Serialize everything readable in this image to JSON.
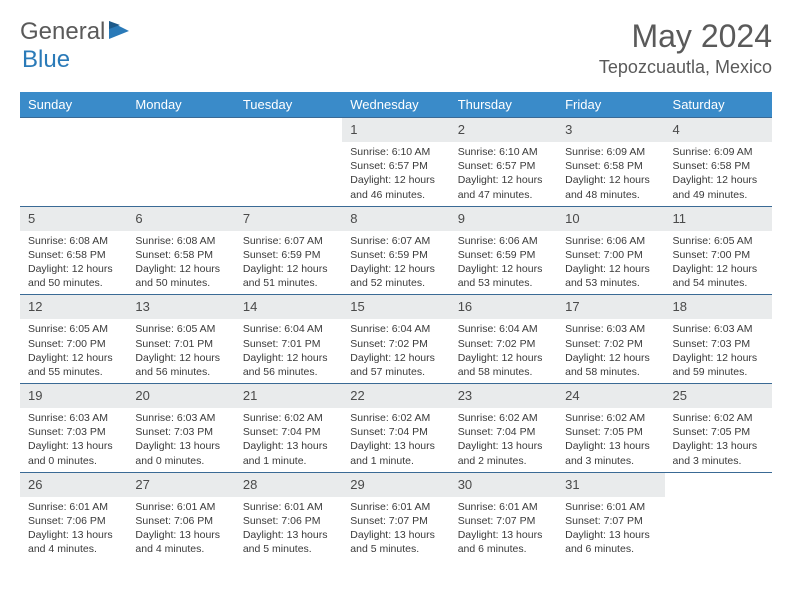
{
  "logo": {
    "text1": "General",
    "text2": "Blue"
  },
  "header": {
    "month": "May 2024",
    "location": "Tepozcuautla, Mexico"
  },
  "colors": {
    "header_bg": "#3a8bc9",
    "header_text": "#ffffff",
    "daynum_bg": "#e9ebec",
    "border": "#3a6a95",
    "logo_gray": "#5a5a5a",
    "logo_blue": "#2a7ab8"
  },
  "day_headers": [
    "Sunday",
    "Monday",
    "Tuesday",
    "Wednesday",
    "Thursday",
    "Friday",
    "Saturday"
  ],
  "weeks": [
    [
      null,
      null,
      null,
      {
        "n": "1",
        "sr": "Sunrise: 6:10 AM",
        "ss": "Sunset: 6:57 PM",
        "d1": "Daylight: 12 hours",
        "d2": "and 46 minutes."
      },
      {
        "n": "2",
        "sr": "Sunrise: 6:10 AM",
        "ss": "Sunset: 6:57 PM",
        "d1": "Daylight: 12 hours",
        "d2": "and 47 minutes."
      },
      {
        "n": "3",
        "sr": "Sunrise: 6:09 AM",
        "ss": "Sunset: 6:58 PM",
        "d1": "Daylight: 12 hours",
        "d2": "and 48 minutes."
      },
      {
        "n": "4",
        "sr": "Sunrise: 6:09 AM",
        "ss": "Sunset: 6:58 PM",
        "d1": "Daylight: 12 hours",
        "d2": "and 49 minutes."
      }
    ],
    [
      {
        "n": "5",
        "sr": "Sunrise: 6:08 AM",
        "ss": "Sunset: 6:58 PM",
        "d1": "Daylight: 12 hours",
        "d2": "and 50 minutes."
      },
      {
        "n": "6",
        "sr": "Sunrise: 6:08 AM",
        "ss": "Sunset: 6:58 PM",
        "d1": "Daylight: 12 hours",
        "d2": "and 50 minutes."
      },
      {
        "n": "7",
        "sr": "Sunrise: 6:07 AM",
        "ss": "Sunset: 6:59 PM",
        "d1": "Daylight: 12 hours",
        "d2": "and 51 minutes."
      },
      {
        "n": "8",
        "sr": "Sunrise: 6:07 AM",
        "ss": "Sunset: 6:59 PM",
        "d1": "Daylight: 12 hours",
        "d2": "and 52 minutes."
      },
      {
        "n": "9",
        "sr": "Sunrise: 6:06 AM",
        "ss": "Sunset: 6:59 PM",
        "d1": "Daylight: 12 hours",
        "d2": "and 53 minutes."
      },
      {
        "n": "10",
        "sr": "Sunrise: 6:06 AM",
        "ss": "Sunset: 7:00 PM",
        "d1": "Daylight: 12 hours",
        "d2": "and 53 minutes."
      },
      {
        "n": "11",
        "sr": "Sunrise: 6:05 AM",
        "ss": "Sunset: 7:00 PM",
        "d1": "Daylight: 12 hours",
        "d2": "and 54 minutes."
      }
    ],
    [
      {
        "n": "12",
        "sr": "Sunrise: 6:05 AM",
        "ss": "Sunset: 7:00 PM",
        "d1": "Daylight: 12 hours",
        "d2": "and 55 minutes."
      },
      {
        "n": "13",
        "sr": "Sunrise: 6:05 AM",
        "ss": "Sunset: 7:01 PM",
        "d1": "Daylight: 12 hours",
        "d2": "and 56 minutes."
      },
      {
        "n": "14",
        "sr": "Sunrise: 6:04 AM",
        "ss": "Sunset: 7:01 PM",
        "d1": "Daylight: 12 hours",
        "d2": "and 56 minutes."
      },
      {
        "n": "15",
        "sr": "Sunrise: 6:04 AM",
        "ss": "Sunset: 7:02 PM",
        "d1": "Daylight: 12 hours",
        "d2": "and 57 minutes."
      },
      {
        "n": "16",
        "sr": "Sunrise: 6:04 AM",
        "ss": "Sunset: 7:02 PM",
        "d1": "Daylight: 12 hours",
        "d2": "and 58 minutes."
      },
      {
        "n": "17",
        "sr": "Sunrise: 6:03 AM",
        "ss": "Sunset: 7:02 PM",
        "d1": "Daylight: 12 hours",
        "d2": "and 58 minutes."
      },
      {
        "n": "18",
        "sr": "Sunrise: 6:03 AM",
        "ss": "Sunset: 7:03 PM",
        "d1": "Daylight: 12 hours",
        "d2": "and 59 minutes."
      }
    ],
    [
      {
        "n": "19",
        "sr": "Sunrise: 6:03 AM",
        "ss": "Sunset: 7:03 PM",
        "d1": "Daylight: 13 hours",
        "d2": "and 0 minutes."
      },
      {
        "n": "20",
        "sr": "Sunrise: 6:03 AM",
        "ss": "Sunset: 7:03 PM",
        "d1": "Daylight: 13 hours",
        "d2": "and 0 minutes."
      },
      {
        "n": "21",
        "sr": "Sunrise: 6:02 AM",
        "ss": "Sunset: 7:04 PM",
        "d1": "Daylight: 13 hours",
        "d2": "and 1 minute."
      },
      {
        "n": "22",
        "sr": "Sunrise: 6:02 AM",
        "ss": "Sunset: 7:04 PM",
        "d1": "Daylight: 13 hours",
        "d2": "and 1 minute."
      },
      {
        "n": "23",
        "sr": "Sunrise: 6:02 AM",
        "ss": "Sunset: 7:04 PM",
        "d1": "Daylight: 13 hours",
        "d2": "and 2 minutes."
      },
      {
        "n": "24",
        "sr": "Sunrise: 6:02 AM",
        "ss": "Sunset: 7:05 PM",
        "d1": "Daylight: 13 hours",
        "d2": "and 3 minutes."
      },
      {
        "n": "25",
        "sr": "Sunrise: 6:02 AM",
        "ss": "Sunset: 7:05 PM",
        "d1": "Daylight: 13 hours",
        "d2": "and 3 minutes."
      }
    ],
    [
      {
        "n": "26",
        "sr": "Sunrise: 6:01 AM",
        "ss": "Sunset: 7:06 PM",
        "d1": "Daylight: 13 hours",
        "d2": "and 4 minutes."
      },
      {
        "n": "27",
        "sr": "Sunrise: 6:01 AM",
        "ss": "Sunset: 7:06 PM",
        "d1": "Daylight: 13 hours",
        "d2": "and 4 minutes."
      },
      {
        "n": "28",
        "sr": "Sunrise: 6:01 AM",
        "ss": "Sunset: 7:06 PM",
        "d1": "Daylight: 13 hours",
        "d2": "and 5 minutes."
      },
      {
        "n": "29",
        "sr": "Sunrise: 6:01 AM",
        "ss": "Sunset: 7:07 PM",
        "d1": "Daylight: 13 hours",
        "d2": "and 5 minutes."
      },
      {
        "n": "30",
        "sr": "Sunrise: 6:01 AM",
        "ss": "Sunset: 7:07 PM",
        "d1": "Daylight: 13 hours",
        "d2": "and 6 minutes."
      },
      {
        "n": "31",
        "sr": "Sunrise: 6:01 AM",
        "ss": "Sunset: 7:07 PM",
        "d1": "Daylight: 13 hours",
        "d2": "and 6 minutes."
      },
      null
    ]
  ]
}
